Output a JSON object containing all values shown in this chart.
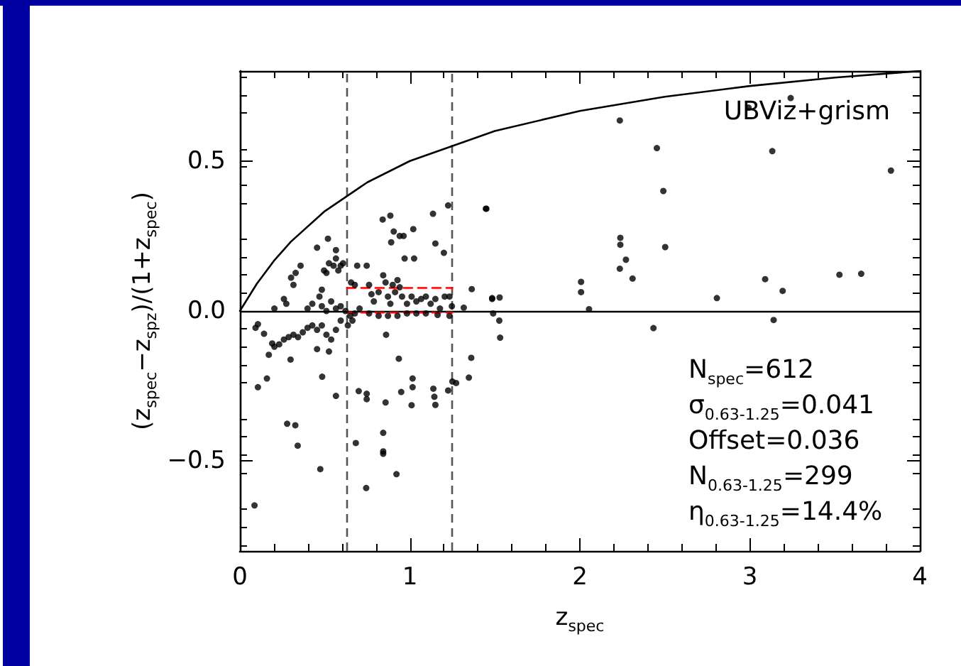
{
  "chart_data": {
    "type": "scatter",
    "xlabel": "z$_{spec}$",
    "ylabel": "(z$_{spec}$−z$_{spz}$)/(1+z$_{spec}$)",
    "xlim": [
      0,
      4
    ],
    "xticks": [
      0,
      1,
      2,
      3,
      4
    ],
    "ylim": [
      -0.8,
      0.8
    ],
    "yticks": [
      {
        "value": -0.5,
        "label": "−0.5"
      },
      {
        "value": 0,
        "label": "0.0"
      },
      {
        "value": 0.5,
        "label": "0.5"
      }
    ],
    "grid": false,
    "ref_lines": [
      {
        "axis": "y",
        "value": 0,
        "color": "#000000",
        "line_style": "solid"
      },
      {
        "axis": "x",
        "value": 0.63,
        "color": "#555555",
        "line_style": "dashed"
      },
      {
        "axis": "x",
        "value": 1.25,
        "color": "#555555",
        "line_style": "dashed"
      }
    ],
    "annotations": [
      "UBViz+grism",
      "N$_{spec}$=612",
      "σ$_{0.63-1.25}$=0.041",
      "Offset=0.036",
      "N$_{0.63-1.25}$=299",
      "η$_{0.63-1.25}$=14.4%"
    ],
    "series": [
      {
        "color": "#000000",
        "marker": "circle",
        "x": [
          0.84,
          0.885,
          0.905,
          0.94,
          0.963,
          0.89,
          1.02,
          1.136,
          1.15,
          1.2,
          1.225,
          1.447,
          0.454,
          0.518,
          0.565,
          1.364,
          1.484,
          1.528,
          1.526,
          1.531,
          1.361,
          1.347,
          0.935,
          0.86,
          0.106,
          0.159,
          0.17,
          0.298,
          0.484,
          0.565,
          0.699,
          0.746,
          0.746,
          0.857,
          0.949,
          1.016,
          1.016,
          1.01,
          1.138,
          1.144,
          1.15,
          1.225,
          1.25,
          1.272,
          0.278,
          0.326,
          0.34,
          0.473,
          0.682,
          0.843,
          0.843,
          0.843,
          0.743,
          0.921,
          0.086,
          0.092,
          0.106,
          0.142,
          0.19,
          0.203,
          0.231,
          0.259,
          0.287,
          0.315,
          0.342,
          0.37,
          0.398,
          0.426,
          0.454,
          0.482,
          0.509,
          0.537,
          0.565,
          0.593,
          0.524,
          0.454,
          0.203,
          0.259,
          0.273,
          0.301,
          0.328,
          0.357,
          0.315,
          0.398,
          0.426,
          0.468,
          0.482,
          0.495,
          0.509,
          0.524,
          0.551,
          0.565,
          0.579,
          0.593,
          0.607,
          0.482,
          0.509,
          0.537,
          0.565,
          0.593,
          0.621,
          0.649,
          0.676,
          0.654,
          0.676,
          0.69,
          0.746,
          0.76,
          0.774,
          0.788,
          0.816,
          0.843,
          0.857,
          0.871,
          0.885,
          0.899,
          0.913,
          0.927,
          0.94,
          0.954,
          0.969,
          0.983,
          1.01,
          1.025,
          1.038,
          1.066,
          1.094,
          1.122,
          1.15,
          1.177,
          1.205,
          1.233,
          1.247,
          0.704,
          0.76,
          0.816,
          0.871,
          0.927,
          0.983,
          1.038,
          1.094,
          1.163,
          1.233,
          1.317,
          0.662,
          0.635,
          1.45,
          2.235,
          2.453,
          2.491,
          3.132,
          3.83,
          2.238,
          2.238,
          2.271,
          2.235,
          2.31,
          2.502,
          2.007,
          2.007,
          2.054,
          1.484,
          1.49,
          2.433,
          2.806,
          3.09,
          3.193,
          3.14,
          3.527,
          3.655,
          3.24,
          2.992
        ],
        "values": [
          0.305,
          0.318,
          0.265,
          0.25,
          0.25,
          0.229,
          0.273,
          0.324,
          0.225,
          0.194,
          0.352,
          0.341,
          0.211,
          0.241,
          0.203,
          0.073,
          0.043,
          0.045,
          -0.032,
          -0.089,
          -0.156,
          -0.222,
          -0.159,
          -0.079,
          -0.254,
          -0.225,
          -0.146,
          -0.162,
          -0.219,
          -0.283,
          -0.267,
          -0.276,
          -0.294,
          -0.305,
          -0.27,
          -0.225,
          -0.254,
          -0.314,
          -0.259,
          -0.286,
          -0.313,
          -0.265,
          -0.235,
          -0.24,
          -0.376,
          -0.381,
          -0.449,
          -0.527,
          -0.44,
          -0.406,
          -0.468,
          -0.476,
          -0.59,
          -0.544,
          -0.648,
          -0.056,
          -0.044,
          -0.076,
          -0.108,
          -0.119,
          -0.111,
          -0.095,
          -0.087,
          -0.079,
          -0.087,
          -0.071,
          -0.056,
          -0.048,
          -0.063,
          -0.048,
          -0.079,
          -0.095,
          -0.063,
          -0.032,
          -0.135,
          -0.127,
          0.008,
          0.04,
          0.024,
          0.111,
          0.127,
          0.151,
          0.087,
          0.008,
          0.024,
          0.048,
          0.071,
          0.135,
          0.127,
          0.159,
          0.151,
          0.175,
          0.135,
          0.151,
          0.159,
          0.016,
          0,
          0.032,
          0.008,
          0.016,
          0,
          -0.016,
          -0.008,
          0.095,
          0.087,
          0.151,
          0.151,
          0.087,
          0.056,
          0.032,
          0.063,
          0.119,
          0.095,
          0.048,
          0.024,
          0.087,
          0.063,
          0.103,
          0.079,
          0.048,
          0.175,
          0.024,
          0.048,
          0.175,
          0.032,
          0.04,
          0.048,
          0.024,
          0.04,
          0.008,
          0.048,
          0.048,
          0.016,
          0.008,
          -0.008,
          -0.016,
          -0.016,
          -0.016,
          -0.008,
          -0.008,
          -0.008,
          -0.013,
          -0.016,
          0.011,
          -0.032,
          -0.048,
          0.341,
          0.635,
          0.543,
          0.4,
          0.533,
          0.468,
          0.244,
          0.221,
          0.171,
          0.141,
          0.108,
          0.213,
          0.097,
          0.063,
          0.006,
          0.04,
          -0.008,
          -0.057,
          0.043,
          0.106,
          0.067,
          -0.03,
          0.121,
          0.124,
          0.71,
          0.678
        ]
      },
      {
        "type": "line",
        "color": "#000000",
        "marker": "none",
        "line_style": "solid",
        "x": [
          0,
          0.1,
          0.2,
          0.3,
          0.5,
          0.75,
          1,
          1.5,
          2,
          2.5,
          3,
          3.5,
          4
        ],
        "values": [
          0,
          0.091,
          0.167,
          0.231,
          0.333,
          0.429,
          0.5,
          0.6,
          0.667,
          0.714,
          0.75,
          0.778,
          0.8
        ]
      },
      {
        "type": "line",
        "color": "#ff0000",
        "marker": "none",
        "line_style": "dashed",
        "x": [
          0.63,
          1.25
        ],
        "values": [
          0.077,
          0.077
        ]
      },
      {
        "type": "line",
        "color": "#ff0000",
        "marker": "none",
        "line_style": "dashed",
        "x": [
          0.63,
          1.25
        ],
        "values": [
          -0.005,
          -0.005
        ]
      }
    ]
  }
}
